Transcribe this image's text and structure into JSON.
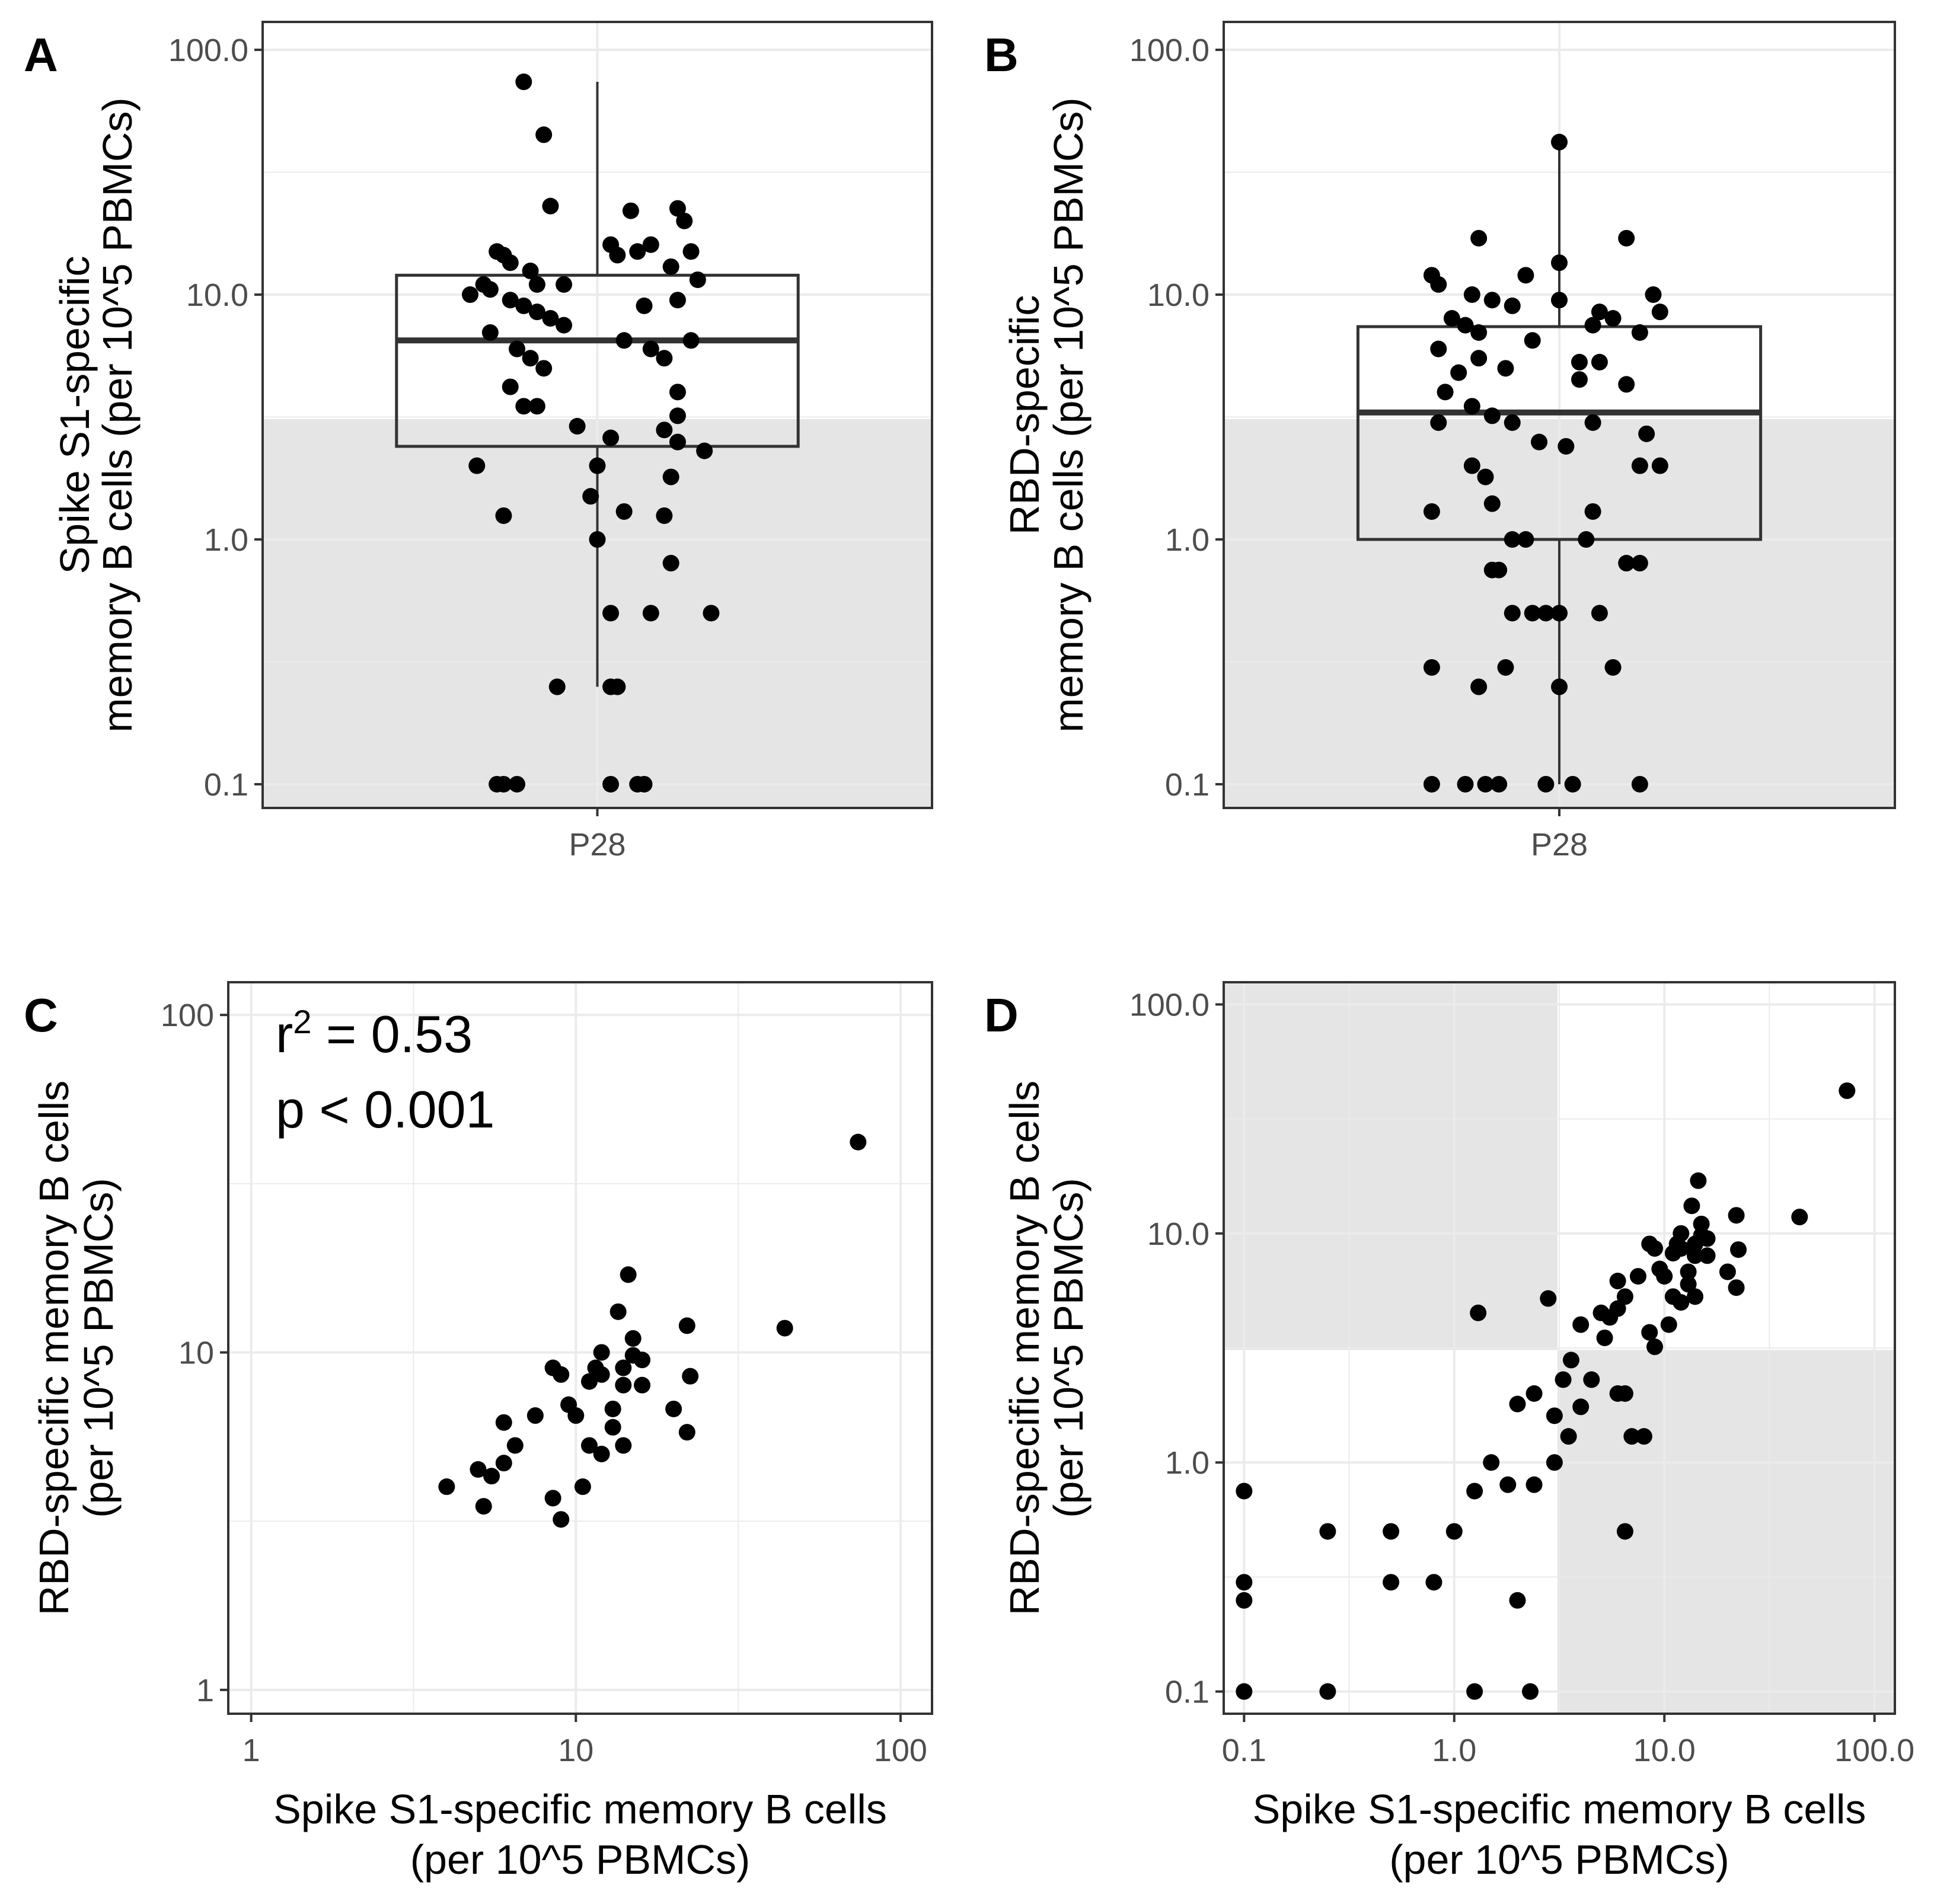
{
  "colors": {
    "background": "#ffffff",
    "shade": "#e5e5e5",
    "grid": "#ebebeb",
    "border": "#333333",
    "point": "#000000",
    "box": "#333333"
  },
  "chart_data": [
    {
      "panel": "A",
      "type": "box",
      "categories": [
        "P28"
      ],
      "ylabel": [
        "Spike S1-specific",
        "memory B cells (per 10^5 PBMCs)"
      ],
      "y_scale": "log10",
      "ylim": [
        0.08,
        130
      ],
      "yticks": [
        0.1,
        1.0,
        10.0,
        100.0
      ],
      "ytick_labels": [
        "0.1",
        "1.0",
        "10.0",
        "100.0"
      ],
      "shaded_below": 3.1,
      "box": {
        "q1": 2.4,
        "median": 6.5,
        "q3": 12.0,
        "whisker_low": 0.25,
        "whisker_high": 74
      },
      "points": [
        {
          "x": -0.11,
          "y": 74
        },
        {
          "x": -0.08,
          "y": 45
        },
        {
          "x": -0.07,
          "y": 23
        },
        {
          "x": 0.05,
          "y": 22
        },
        {
          "x": 0.12,
          "y": 22.5
        },
        {
          "x": 0.13,
          "y": 20
        },
        {
          "x": -0.15,
          "y": 15
        },
        {
          "x": -0.14,
          "y": 14.5
        },
        {
          "x": -0.13,
          "y": 13.5
        },
        {
          "x": -0.1,
          "y": 12.5
        },
        {
          "x": -0.09,
          "y": 11
        },
        {
          "x": -0.05,
          "y": 11
        },
        {
          "x": 0.02,
          "y": 16
        },
        {
          "x": 0.03,
          "y": 14.5
        },
        {
          "x": 0.06,
          "y": 15
        },
        {
          "x": 0.08,
          "y": 16
        },
        {
          "x": 0.11,
          "y": 13
        },
        {
          "x": 0.14,
          "y": 15
        },
        {
          "x": 0.15,
          "y": 11.5
        },
        {
          "x": -0.17,
          "y": 11
        },
        {
          "x": -0.16,
          "y": 10.5
        },
        {
          "x": -0.19,
          "y": 10
        },
        {
          "x": -0.13,
          "y": 9.5
        },
        {
          "x": -0.11,
          "y": 9
        },
        {
          "x": -0.09,
          "y": 8.5
        },
        {
          "x": -0.07,
          "y": 8
        },
        {
          "x": -0.05,
          "y": 7.5
        },
        {
          "x": 0.07,
          "y": 9
        },
        {
          "x": 0.12,
          "y": 9.5
        },
        {
          "x": -0.16,
          "y": 7
        },
        {
          "x": -0.12,
          "y": 6
        },
        {
          "x": -0.1,
          "y": 5.5
        },
        {
          "x": -0.08,
          "y": 5
        },
        {
          "x": 0.04,
          "y": 6.5
        },
        {
          "x": 0.08,
          "y": 6
        },
        {
          "x": 0.14,
          "y": 6.5
        },
        {
          "x": 0.1,
          "y": 5.5
        },
        {
          "x": -0.13,
          "y": 4.2
        },
        {
          "x": 0.12,
          "y": 4
        },
        {
          "x": -0.11,
          "y": 3.5
        },
        {
          "x": -0.09,
          "y": 3.5
        },
        {
          "x": 0.12,
          "y": 3.2
        },
        {
          "x": 0.1,
          "y": 2.8
        },
        {
          "x": -0.03,
          "y": 2.9
        },
        {
          "x": 0.02,
          "y": 2.6
        },
        {
          "x": 0.12,
          "y": 2.5
        },
        {
          "x": 0.16,
          "y": 2.3
        },
        {
          "x": -0.18,
          "y": 2.0
        },
        {
          "x": 0.0,
          "y": 2.0
        },
        {
          "x": 0.11,
          "y": 1.8
        },
        {
          "x": -0.01,
          "y": 1.5
        },
        {
          "x": 0.04,
          "y": 1.3
        },
        {
          "x": 0.1,
          "y": 1.25
        },
        {
          "x": -0.14,
          "y": 1.25
        },
        {
          "x": 0.0,
          "y": 1.0
        },
        {
          "x": 0.11,
          "y": 0.8
        },
        {
          "x": 0.02,
          "y": 0.5
        },
        {
          "x": 0.08,
          "y": 0.5
        },
        {
          "x": 0.17,
          "y": 0.5
        },
        {
          "x": -0.06,
          "y": 0.25
        },
        {
          "x": 0.02,
          "y": 0.25
        },
        {
          "x": 0.03,
          "y": 0.25
        },
        {
          "x": -0.15,
          "y": 0.1
        },
        {
          "x": -0.14,
          "y": 0.1
        },
        {
          "x": -0.12,
          "y": 0.1
        },
        {
          "x": 0.02,
          "y": 0.1
        },
        {
          "x": 0.06,
          "y": 0.1
        },
        {
          "x": 0.07,
          "y": 0.1
        }
      ]
    },
    {
      "panel": "B",
      "type": "box",
      "categories": [
        "P28"
      ],
      "ylabel": [
        "RBD-specific",
        "memory B cells  (per 10^5 PBMCs)"
      ],
      "y_scale": "log10",
      "ylim": [
        0.08,
        130
      ],
      "yticks": [
        0.1,
        1.0,
        10.0,
        100.0
      ],
      "ytick_labels": [
        "0.1",
        "1.0",
        "10.0",
        "100.0"
      ],
      "shaded_below": 3.1,
      "box": {
        "q1": 1.0,
        "median": 3.3,
        "q3": 7.4,
        "whisker_low": 0.1,
        "whisker_high": 42
      },
      "points": [
        {
          "x": 0.0,
          "y": 42
        },
        {
          "x": -0.12,
          "y": 17
        },
        {
          "x": 0.1,
          "y": 17
        },
        {
          "x": 0.0,
          "y": 13.5
        },
        {
          "x": -0.19,
          "y": 12
        },
        {
          "x": -0.05,
          "y": 12
        },
        {
          "x": -0.18,
          "y": 11
        },
        {
          "x": -0.13,
          "y": 10
        },
        {
          "x": -0.1,
          "y": 9.5
        },
        {
          "x": -0.07,
          "y": 9
        },
        {
          "x": 0.0,
          "y": 9.5
        },
        {
          "x": 0.06,
          "y": 8.5
        },
        {
          "x": 0.14,
          "y": 10
        },
        {
          "x": 0.15,
          "y": 8.5
        },
        {
          "x": -0.16,
          "y": 8
        },
        {
          "x": -0.14,
          "y": 7.5
        },
        {
          "x": -0.12,
          "y": 7
        },
        {
          "x": -0.04,
          "y": 6.5
        },
        {
          "x": 0.05,
          "y": 7.5
        },
        {
          "x": 0.08,
          "y": 8
        },
        {
          "x": 0.12,
          "y": 7
        },
        {
          "x": -0.18,
          "y": 6
        },
        {
          "x": -0.12,
          "y": 5.5
        },
        {
          "x": -0.08,
          "y": 5
        },
        {
          "x": 0.03,
          "y": 5.3
        },
        {
          "x": 0.06,
          "y": 5.3
        },
        {
          "x": -0.15,
          "y": 4.8
        },
        {
          "x": 0.03,
          "y": 4.5
        },
        {
          "x": 0.1,
          "y": 4.3
        },
        {
          "x": -0.17,
          "y": 4.0
        },
        {
          "x": -0.13,
          "y": 3.5
        },
        {
          "x": -0.1,
          "y": 3.2
        },
        {
          "x": -0.07,
          "y": 3.0
        },
        {
          "x": -0.18,
          "y": 3.0
        },
        {
          "x": 0.05,
          "y": 3.0
        },
        {
          "x": 0.13,
          "y": 2.7
        },
        {
          "x": -0.03,
          "y": 2.5
        },
        {
          "x": 0.01,
          "y": 2.4
        },
        {
          "x": -0.13,
          "y": 2.0
        },
        {
          "x": -0.11,
          "y": 1.8
        },
        {
          "x": 0.12,
          "y": 2.0
        },
        {
          "x": 0.15,
          "y": 2.0
        },
        {
          "x": -0.1,
          "y": 1.4
        },
        {
          "x": -0.19,
          "y": 1.3
        },
        {
          "x": 0.05,
          "y": 1.3
        },
        {
          "x": -0.07,
          "y": 1.0
        },
        {
          "x": -0.05,
          "y": 1.0
        },
        {
          "x": 0.04,
          "y": 1.0
        },
        {
          "x": -0.1,
          "y": 0.75
        },
        {
          "x": -0.09,
          "y": 0.75
        },
        {
          "x": 0.12,
          "y": 0.8
        },
        {
          "x": 0.1,
          "y": 0.8
        },
        {
          "x": -0.07,
          "y": 0.5
        },
        {
          "x": -0.04,
          "y": 0.5
        },
        {
          "x": -0.02,
          "y": 0.5
        },
        {
          "x": 0.0,
          "y": 0.5
        },
        {
          "x": 0.06,
          "y": 0.5
        },
        {
          "x": -0.19,
          "y": 0.3
        },
        {
          "x": -0.08,
          "y": 0.3
        },
        {
          "x": 0.08,
          "y": 0.3
        },
        {
          "x": -0.12,
          "y": 0.25
        },
        {
          "x": 0.0,
          "y": 0.25
        },
        {
          "x": -0.19,
          "y": 0.1
        },
        {
          "x": -0.14,
          "y": 0.1
        },
        {
          "x": -0.11,
          "y": 0.1
        },
        {
          "x": -0.09,
          "y": 0.1
        },
        {
          "x": -0.02,
          "y": 0.1
        },
        {
          "x": 0.02,
          "y": 0.1
        },
        {
          "x": 0.12,
          "y": 0.1
        }
      ]
    },
    {
      "panel": "C",
      "type": "scatter",
      "xlabel": [
        "Spike S1-specific memory B cells",
        "(per 10^5 PBMCs)"
      ],
      "ylabel": [
        "RBD-specific memory B cells",
        "(per 10^5 PBMCs)"
      ],
      "x_scale": "log10",
      "y_scale": "log10",
      "xlim": [
        0.85,
        125
      ],
      "ylim": [
        0.85,
        125
      ],
      "xticks": [
        1,
        10,
        100
      ],
      "xtick_labels": [
        "1",
        "10",
        "100"
      ],
      "yticks": [
        1,
        10,
        100
      ],
      "ytick_labels": [
        "1",
        "10",
        "100"
      ],
      "annotation": {
        "r2_base": "r",
        "r2_sup": "2",
        "r2_rest": " = 0.53",
        "p": "p < 0.001"
      },
      "points": [
        [
          74,
          42
        ],
        [
          44,
          11.8
        ],
        [
          14.5,
          17
        ],
        [
          13.5,
          13.2
        ],
        [
          22,
          12
        ],
        [
          15,
          11
        ],
        [
          12,
          10
        ],
        [
          15,
          9.8
        ],
        [
          16,
          9.5
        ],
        [
          11.5,
          9
        ],
        [
          14,
          9
        ],
        [
          8.5,
          9
        ],
        [
          9,
          8.6
        ],
        [
          12,
          8.6
        ],
        [
          11,
          8.2
        ],
        [
          14,
          8
        ],
        [
          16,
          8
        ],
        [
          22.5,
          8.5
        ],
        [
          9.5,
          7
        ],
        [
          13,
          6.8
        ],
        [
          20,
          6.8
        ],
        [
          7.5,
          6.5
        ],
        [
          10,
          6.5
        ],
        [
          6,
          6.2
        ],
        [
          13,
          6
        ],
        [
          22,
          5.8
        ],
        [
          6.5,
          5.3
        ],
        [
          11,
          5.3
        ],
        [
          14,
          5.3
        ],
        [
          12,
          5
        ],
        [
          6,
          4.7
        ],
        [
          5,
          4.5
        ],
        [
          5.5,
          4.3
        ],
        [
          4,
          4
        ],
        [
          10.5,
          4
        ],
        [
          8.5,
          3.7
        ],
        [
          5.2,
          3.5
        ],
        [
          9,
          3.2
        ]
      ]
    },
    {
      "panel": "D",
      "type": "scatter",
      "xlabel": [
        "Spike S1-specific memory B cells",
        "(per 10^5 PBMCs)"
      ],
      "ylabel": [
        "RBD-specific memory B cells",
        "(per 10^5 PBMCs)"
      ],
      "x_scale": "log10",
      "y_scale": "log10",
      "xlim": [
        0.08,
        125
      ],
      "ylim": [
        0.08,
        125
      ],
      "xticks": [
        0.1,
        1.0,
        10.0,
        100.0
      ],
      "xtick_labels": [
        "0.1",
        "1.0",
        "10.0",
        "100.0"
      ],
      "yticks": [
        0.1,
        1.0,
        10.0,
        100.0
      ],
      "ytick_labels": [
        "0.1",
        "1.0",
        "10.0",
        "100.0"
      ],
      "shaded_regions": [
        {
          "x_max": 3.1,
          "y_min": 3.1
        },
        {
          "x_min": 3.1,
          "y_max": 3.1
        }
      ],
      "points": [
        [
          74,
          42
        ],
        [
          44,
          11.8
        ],
        [
          14.5,
          17
        ],
        [
          13.5,
          13.2
        ],
        [
          22,
          12
        ],
        [
          15,
          11
        ],
        [
          12,
          10
        ],
        [
          15,
          9.8
        ],
        [
          16,
          9.5
        ],
        [
          11.5,
          9
        ],
        [
          14,
          9
        ],
        [
          8.5,
          9
        ],
        [
          9,
          8.6
        ],
        [
          12,
          8.6
        ],
        [
          11,
          8.2
        ],
        [
          14,
          8
        ],
        [
          16,
          8
        ],
        [
          22.5,
          8.5
        ],
        [
          9.5,
          7
        ],
        [
          13,
          6.8
        ],
        [
          20,
          6.8
        ],
        [
          7.5,
          6.5
        ],
        [
          10,
          6.5
        ],
        [
          6,
          6.2
        ],
        [
          13,
          6
        ],
        [
          22,
          5.8
        ],
        [
          6.5,
          5.3
        ],
        [
          11,
          5.3
        ],
        [
          14,
          5.3
        ],
        [
          12,
          5
        ],
        [
          6,
          4.7
        ],
        [
          5,
          4.5
        ],
        [
          5.5,
          4.3
        ],
        [
          4,
          4
        ],
        [
          10.5,
          4
        ],
        [
          8.5,
          3.7
        ],
        [
          5.2,
          3.5
        ],
        [
          9,
          3.2
        ],
        [
          2.8,
          5.2
        ],
        [
          1.3,
          4.5
        ],
        [
          3.6,
          2.8
        ],
        [
          3.3,
          2.3
        ],
        [
          4.5,
          2.3
        ],
        [
          6.0,
          2.0
        ],
        [
          6.5,
          2.0
        ],
        [
          2.4,
          2.0
        ],
        [
          2.0,
          1.8
        ],
        [
          4.0,
          1.75
        ],
        [
          3.0,
          1.6
        ],
        [
          3.5,
          1.3
        ],
        [
          7.0,
          1.3
        ],
        [
          8.0,
          1.3
        ],
        [
          1.5,
          1.0
        ],
        [
          3.0,
          1.0
        ],
        [
          1.8,
          0.8
        ],
        [
          2.4,
          0.8
        ],
        [
          1.25,
          0.75
        ],
        [
          6.5,
          0.5
        ],
        [
          0.1,
          0.75
        ],
        [
          0.25,
          0.5
        ],
        [
          0.5,
          0.5
        ],
        [
          1.0,
          0.5
        ],
        [
          0.1,
          0.3
        ],
        [
          0.5,
          0.3
        ],
        [
          0.8,
          0.3
        ],
        [
          0.1,
          0.25
        ],
        [
          2.0,
          0.25
        ],
        [
          0.1,
          0.1
        ],
        [
          0.25,
          0.1
        ],
        [
          1.25,
          0.1
        ],
        [
          2.3,
          0.1
        ]
      ]
    }
  ]
}
